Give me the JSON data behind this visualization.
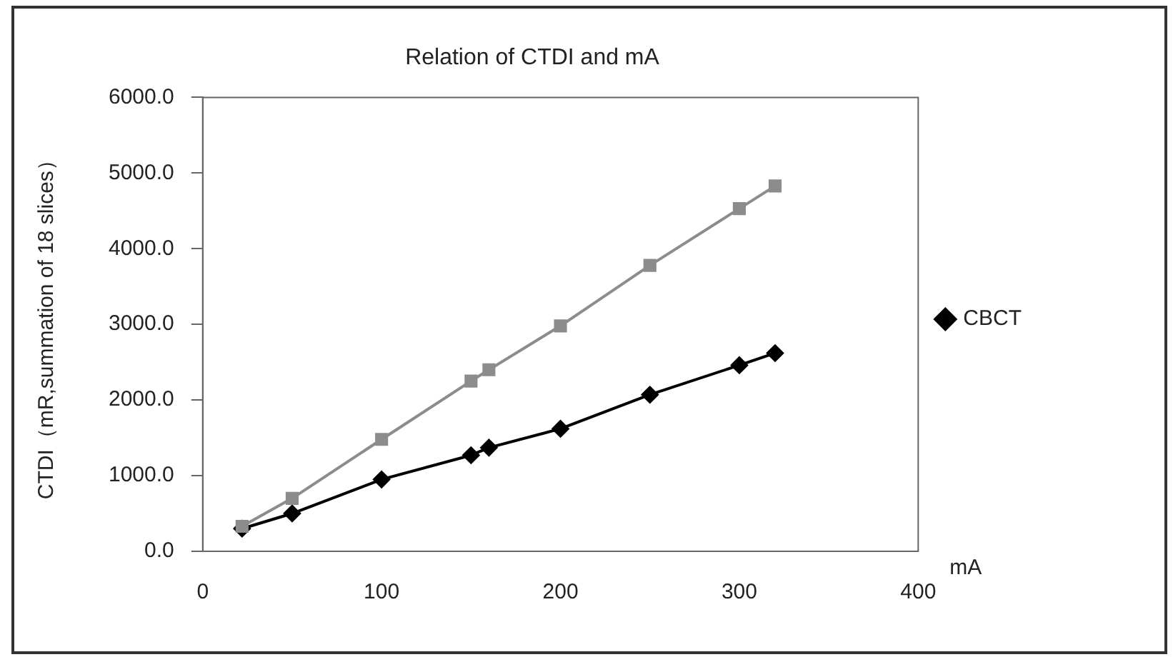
{
  "chart_data": {
    "type": "line",
    "title": "Relation of CTDI and mA",
    "xlabel": "mA",
    "ylabel": "CTDI（mR,summation of 18 slices）",
    "x": [
      22,
      50,
      100,
      150,
      160,
      200,
      250,
      300,
      320
    ],
    "series": [
      {
        "name": "CBCT",
        "color": "#000000",
        "marker": "diamond",
        "values": [
          300,
          500,
          950,
          1270,
          1370,
          1620,
          2070,
          2460,
          2620
        ]
      },
      {
        "color": "#8c8c8c",
        "marker": "square",
        "values": [
          330,
          700,
          1480,
          2250,
          2400,
          2980,
          3780,
          4530,
          4830
        ]
      }
    ],
    "xlim": [
      0,
      400
    ],
    "xticks": [
      0,
      100,
      200,
      300,
      400
    ],
    "ylim": [
      0,
      6000
    ],
    "yticks": [
      {
        "value": 0,
        "label": "0.0"
      },
      {
        "value": 1000,
        "label": "1000.0"
      },
      {
        "value": 2000,
        "label": "2000.0"
      },
      {
        "value": 3000,
        "label": "3000.0"
      },
      {
        "value": 4000,
        "label": "4000.0"
      },
      {
        "value": 5000,
        "label": "5000.0"
      },
      {
        "value": 6000,
        "label": "6000.0"
      }
    ],
    "grid": false,
    "legend": "right"
  }
}
